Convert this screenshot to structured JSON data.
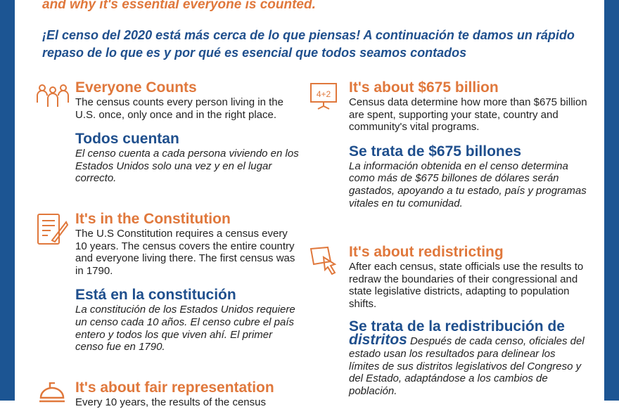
{
  "intro": {
    "english_tail": "and why it's essential everyone is counted.",
    "spanish": "¡El censo del 2020 está más cerca de lo que piensas! A continuación te damos un rápido repaso de lo que es y por qué es esencial que todos seamos contados"
  },
  "left": [
    {
      "icon": "people-icon",
      "title_en": "Everyone Counts",
      "body_en": "The census counts every person living in the U.S. once, only once and in the right place.",
      "title_es": "Todos cuentan",
      "body_es": "El censo cuenta a cada persona viviendo en los Estados Unidos solo una vez y en el lugar correcto."
    },
    {
      "icon": "document-quill-icon",
      "title_en": "It's in the Constitution",
      "body_en": "The U.S Constitution requires a census every 10 years. The census covers the entire country and everyone living there. The first census was in 1790.",
      "title_es": "Está en la constitución",
      "body_es": "La constitución de los Estados Unidos requiere un censo cada 10 años. El censo cubre el país entero y todos los que viven ahí. El primer censo fue en 1790."
    },
    {
      "icon": "capitol-dome-icon",
      "title_en": "It's about fair representation",
      "body_en": "Every 10 years, the results of the census"
    }
  ],
  "right": [
    {
      "icon": "calculator-board-icon",
      "icon_text": "4+2",
      "title_en": "It's about $675 billion",
      "body_en": "Census data determine how more than $675 billion are spent, supporting your state, country and community's vital programs.",
      "title_es": "Se trata de $675 billones",
      "body_es": "La información obtenida en el censo determina como más de $675 billones de dólares serán gastados, apoyando a tu estado, país y programas vitales en tu comunidad."
    },
    {
      "icon": "map-pointer-icon",
      "title_en": "It's about redistricting",
      "body_en": "After each census, state officials use the results to redraw the boundaries of their congressional and state legislative districts, adapting to population shifts.",
      "title_es_line1": "Se trata de la redistribución de",
      "title_es_line2": "distritos",
      "body_es": "Después de cada censo, oficiales del estado usan los resultados para delinear los límites de sus distritos legislativos del Congreso y del Estado, adaptándose a los cambios de población."
    }
  ],
  "colors": {
    "border": "#1c5593",
    "orange": "#e0783c",
    "blue": "#1f4f8d"
  }
}
